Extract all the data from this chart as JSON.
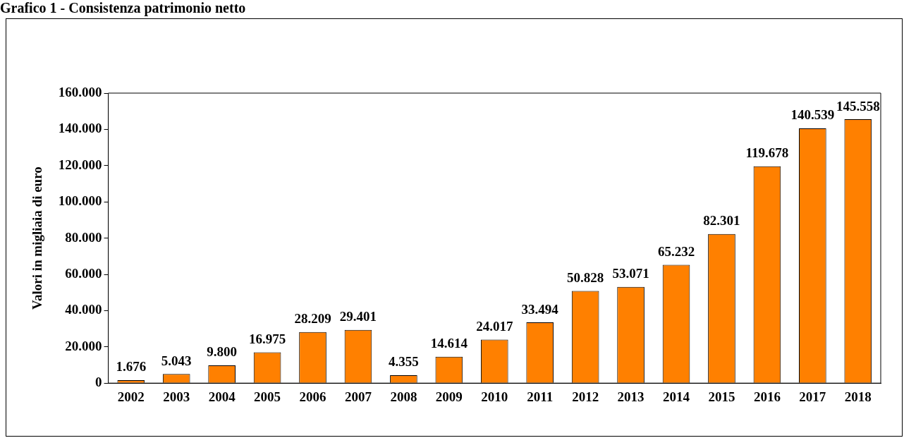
{
  "chart_data": {
    "type": "bar",
    "title": "Grafico 1 - Consistenza patrimonio netto",
    "ylabel": "Valori in migliaia di euro",
    "categories": [
      "2002",
      "2003",
      "2004",
      "2005",
      "2006",
      "2007",
      "2008",
      "2009",
      "2010",
      "2011",
      "2012",
      "2013",
      "2014",
      "2015",
      "2016",
      "2017",
      "2018"
    ],
    "values": [
      1676,
      5043,
      9800,
      16975,
      28209,
      29401,
      4355,
      14614,
      24017,
      33494,
      50828,
      53071,
      65232,
      82301,
      119678,
      140539,
      145558
    ],
    "value_labels": [
      "1.676",
      "5.043",
      "9.800",
      "16.975",
      "28.209",
      "29.401",
      "4.355",
      "14.614",
      "24.017",
      "33.494",
      "50.828",
      "53.071",
      "65.232",
      "82.301",
      "119.678",
      "140.539",
      "145.558"
    ],
    "color": "#ff8000",
    "ylim": [
      0,
      160000
    ],
    "yticks": [
      {
        "value": 0,
        "label": "0"
      },
      {
        "value": 20000,
        "label": "20.000"
      },
      {
        "value": 40000,
        "label": "40.000"
      },
      {
        "value": 60000,
        "label": "60.000"
      },
      {
        "value": 80000,
        "label": "80.000"
      },
      {
        "value": 100000,
        "label": "100.000"
      },
      {
        "value": 120000,
        "label": "120.000"
      },
      {
        "value": 140000,
        "label": "140.000"
      },
      {
        "value": 160000,
        "label": "160.000"
      }
    ],
    "grid": false,
    "legend": false
  }
}
